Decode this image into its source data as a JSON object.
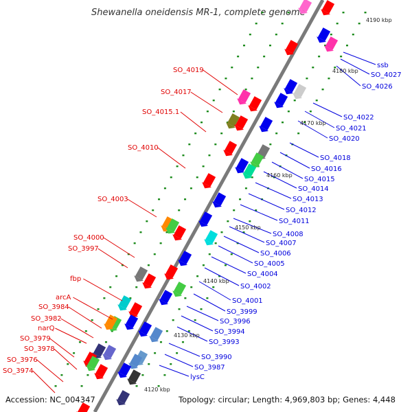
{
  "title": "Shewanella oneidensis MR-1, complete genome",
  "footer": {
    "accession": "Accession: NC_004347",
    "summary": "Topology: circular; Length: 4,969,803 bp; Genes: 4,448"
  },
  "colors": {
    "forward_label": "#e00000",
    "reverse_label": "#0000dd",
    "backbone": "#888888",
    "tick": "#1a8a1a"
  },
  "kbp_labels": [
    "4190 kbp",
    "4180 kbp",
    "4170 kbp",
    "4160 kbp",
    "4150 kbp",
    "4140 kbp",
    "4130 kbp",
    "4120 kbp"
  ],
  "left_labels": [
    "SO_4019",
    "SO_4017",
    "SO_4015.1",
    "SO_4010",
    "SO_4003",
    "SO_4000",
    "SO_3997",
    "fbp",
    "arcA",
    "SO_3984",
    "SO_3982",
    "narQ",
    "SO_3979",
    "SO_3978",
    "SO_3976",
    "SO_3974"
  ],
  "right_labels": [
    "ssb",
    "SO_4027",
    "SO_4026",
    "SO_4022",
    "SO_4021",
    "SO_4020",
    "SO_4018",
    "SO_4016",
    "SO_4015",
    "SO_4014",
    "SO_4013",
    "SO_4012",
    "SO_4011",
    "SO_4008",
    "SO_4007",
    "SO_4006",
    "SO_4005",
    "SO_4004",
    "SO_4002",
    "SO_4001",
    "SO_3999",
    "SO_3996",
    "SO_3994",
    "SO_3993",
    "SO_3990",
    "SO_3987",
    "lysC"
  ]
}
